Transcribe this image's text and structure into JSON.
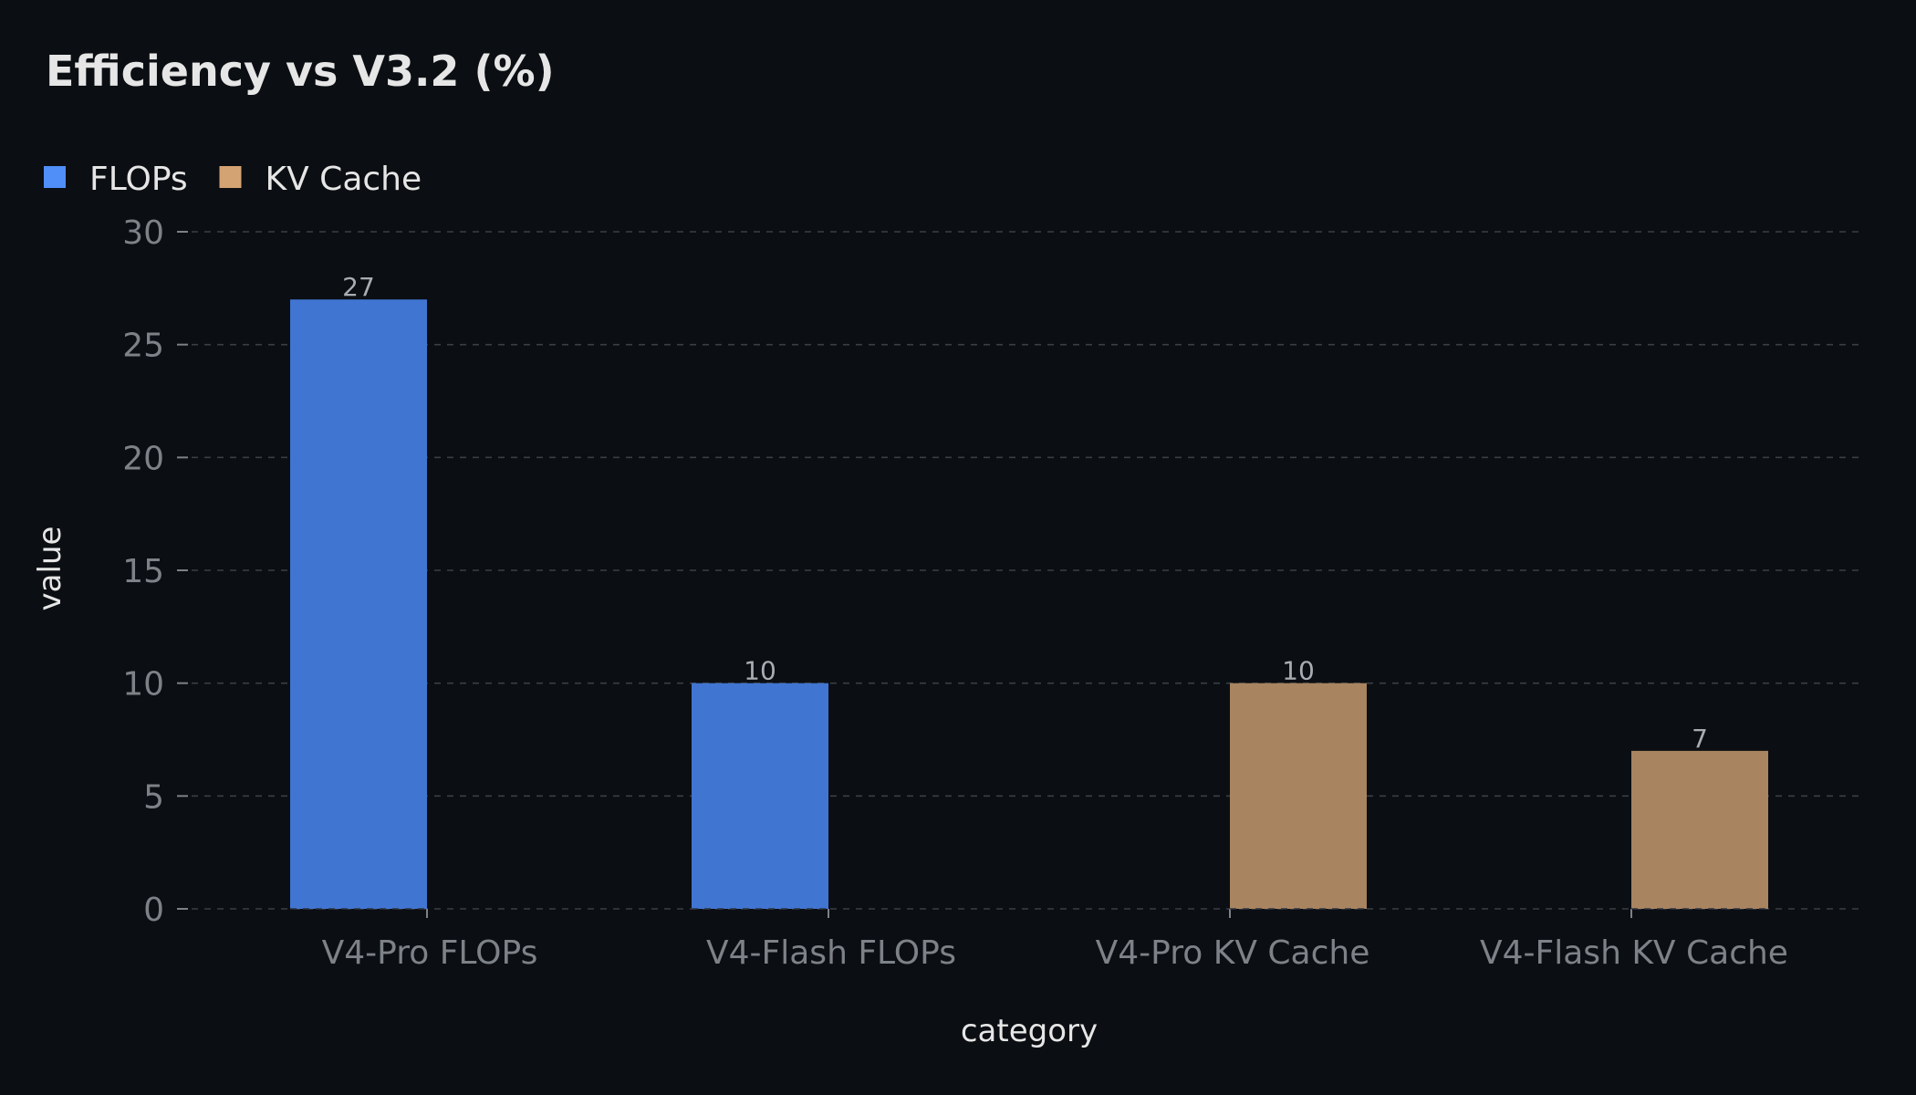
{
  "chart_data": {
    "type": "bar",
    "title": "Efficiency vs V3.2 (%)",
    "xlabel": "category",
    "ylabel": "value",
    "categories": [
      "V4-Pro FLOPs",
      "V4-Flash FLOPs",
      "V4-Pro KV Cache",
      "V4-Flash KV Cache"
    ],
    "series": [
      {
        "name": "FLOPs",
        "color": "#4f8ff7",
        "bar_color": "#4175d2",
        "values": [
          27,
          10,
          null,
          null
        ]
      },
      {
        "name": "KV Cache",
        "color": "#d4a373",
        "bar_color": "#a98460",
        "values": [
          null,
          null,
          10,
          7
        ]
      }
    ],
    "ylim": [
      0,
      30
    ],
    "yticks": [
      0,
      5,
      10,
      15,
      20,
      25,
      30
    ],
    "grid": true,
    "legend_position": "top-left",
    "data_labels": true
  }
}
